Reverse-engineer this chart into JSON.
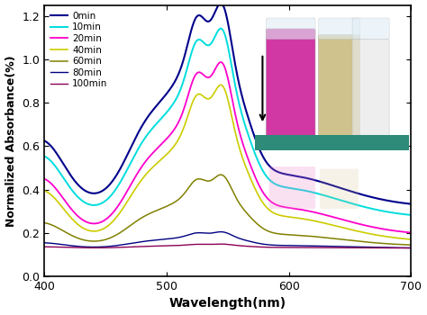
{
  "xlabel": "Wavelength(nm)",
  "ylabel": "Normalized Absorbance(%)",
  "xlim": [
    400,
    700
  ],
  "ylim": [
    0.0,
    1.25
  ],
  "yticks": [
    0.0,
    0.2,
    0.4,
    0.6,
    0.8,
    1.0,
    1.2
  ],
  "xticks": [
    400,
    500,
    600,
    700
  ],
  "series": [
    {
      "label": "0min",
      "color": "#00008B",
      "lw": 1.5
    },
    {
      "label": "10min",
      "color": "#00DDDD",
      "lw": 1.4
    },
    {
      "label": "20min",
      "color": "#FF00CC",
      "lw": 1.3
    },
    {
      "label": "40min",
      "color": "#CCCC00",
      "lw": 1.2
    },
    {
      "label": "60min",
      "color": "#808000",
      "lw": 1.1
    },
    {
      "label": "80min",
      "color": "#000080",
      "lw": 1.0
    },
    {
      "label": "100min",
      "color": "#8B0057",
      "lw": 1.0
    }
  ],
  "scales": [
    1.0,
    0.93,
    0.85,
    0.77,
    0.35,
    0.08,
    0.02
  ],
  "baselines": [
    0.32,
    0.27,
    0.19,
    0.16,
    0.14,
    0.13,
    0.13
  ],
  "background_color": "#ffffff"
}
